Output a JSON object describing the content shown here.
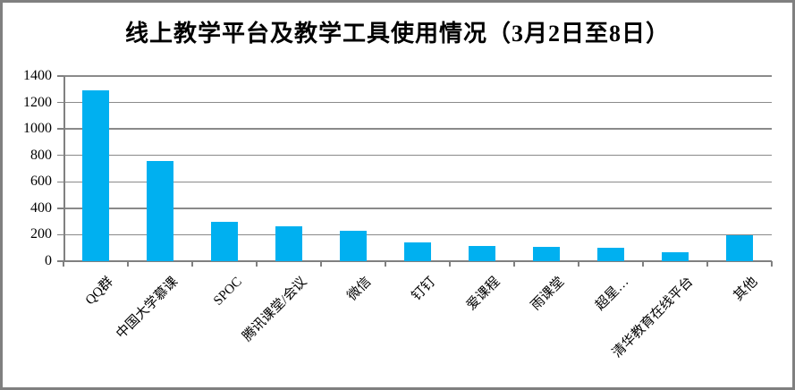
{
  "chart_data": {
    "type": "bar",
    "title": "线上教学平台及教学工具使用情况（3月2日至8日）",
    "categories": [
      "QQ群",
      "中国大学慕课",
      "SPOC",
      "腾讯课堂/会议",
      "微信",
      "钉钉",
      "爱课程",
      "雨课堂",
      "超星…",
      "清华教育在线平台",
      "其他"
    ],
    "values": [
      1290,
      755,
      300,
      267,
      233,
      140,
      115,
      107,
      100,
      65,
      193
    ],
    "xlabel": "",
    "ylabel": "",
    "ylim": [
      0,
      1400
    ],
    "ytick_step": 200,
    "ytick_labels": [
      "0",
      "200",
      "400",
      "600",
      "800",
      "1000",
      "1200",
      "1400"
    ],
    "grid": true,
    "legend_position": "none",
    "bar_color": "#00B0F0",
    "grid_color": "#8A8A8A",
    "axis_color": "#808080",
    "text_color": "#000000",
    "background_color": "#FFFFFF",
    "border_color": "#808080"
  }
}
